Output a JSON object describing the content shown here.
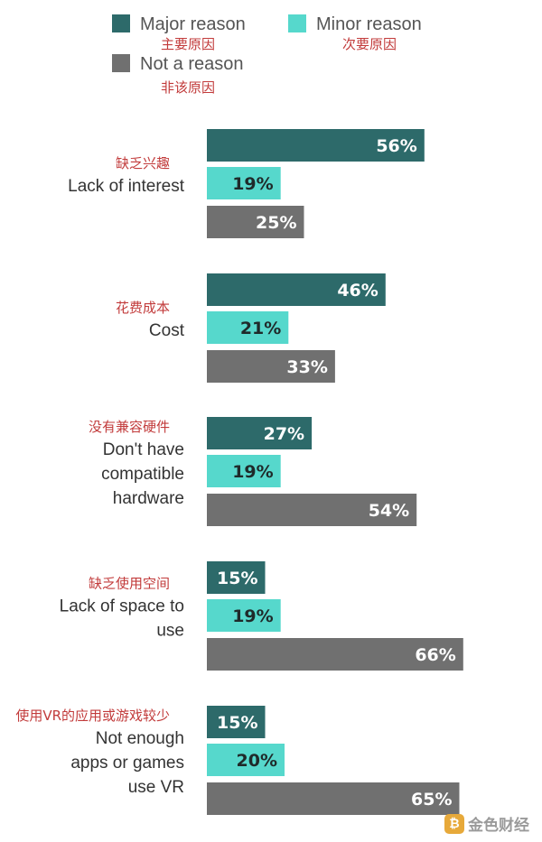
{
  "chart_data": {
    "type": "bar",
    "orientation": "horizontal",
    "legend": [
      {
        "name": "Major reason",
        "name_zh": "主要原因",
        "color": "#2d6a6a"
      },
      {
        "name": "Minor reason",
        "name_zh": "次要原因",
        "color": "#56d8cc"
      },
      {
        "name": "Not a reason",
        "name_zh": "非该原因",
        "color": "#707070"
      }
    ],
    "categories": [
      {
        "en": [
          "Lack of interest"
        ],
        "zh": "缺乏兴趣"
      },
      {
        "en": [
          "Cost"
        ],
        "zh": "花费成本"
      },
      {
        "en": [
          "Don't have",
          "compatible",
          "hardware"
        ],
        "zh": "没有兼容硬件"
      },
      {
        "en": [
          "Lack of space to",
          "use"
        ],
        "zh": "缺乏使用空间"
      },
      {
        "en": [
          "Not enough",
          "apps or games",
          "use VR"
        ],
        "zh": "使用VR的应用或游戏较少"
      }
    ],
    "series": [
      {
        "name": "Major reason",
        "values": [
          56,
          46,
          27,
          15,
          15
        ]
      },
      {
        "name": "Minor reason",
        "values": [
          19,
          21,
          19,
          19,
          20
        ]
      },
      {
        "name": "Not a reason",
        "values": [
          25,
          33,
          54,
          66,
          65
        ]
      }
    ],
    "value_suffix": "%"
  },
  "watermark": {
    "text": "金色财经",
    "logo": "₿"
  }
}
